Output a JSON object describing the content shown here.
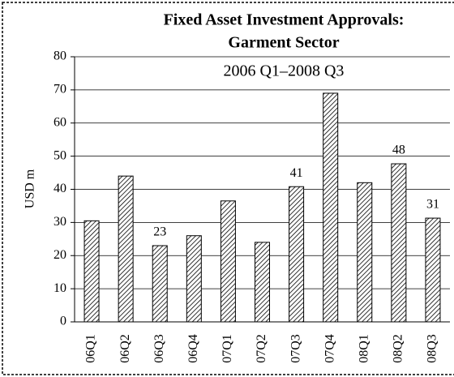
{
  "chart_data": {
    "type": "bar",
    "title": [
      "Fixed Asset Investment Approvals:",
      "Garment Sector"
    ],
    "subtitle": "2006 Q1–2008 Q3",
    "y_label": "USD m",
    "categories": [
      "06Q1",
      "06Q2",
      "06Q3",
      "06Q4",
      "07Q1",
      "07Q2",
      "07Q3",
      "07Q4",
      "08Q1",
      "08Q2",
      "08Q3"
    ],
    "values": [
      30.5,
      44,
      23,
      26,
      36.5,
      24,
      40.8,
      69,
      42,
      47.7,
      31.3
    ],
    "value_labels": [
      null,
      null,
      "23",
      null,
      null,
      null,
      "41",
      null,
      null,
      "48",
      "31"
    ],
    "color": "#000000",
    "ylim": [
      0,
      80
    ],
    "yticks": [
      0,
      10,
      20,
      30,
      40,
      50,
      60,
      70,
      80
    ],
    "grid": true
  }
}
